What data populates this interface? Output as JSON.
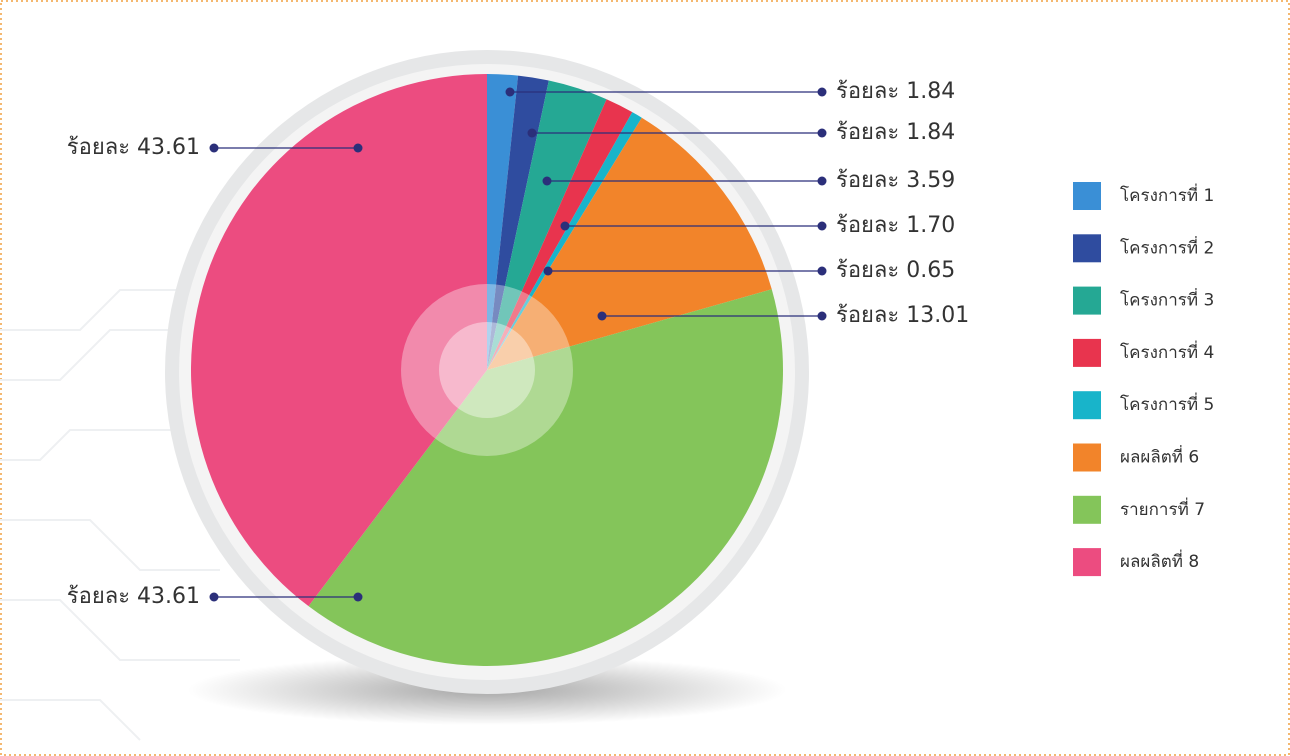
{
  "chart_data": {
    "type": "pie",
    "categories": [
      "โครงการที่ 1",
      "โครงการที่ 2",
      "โครงการที่ 3",
      "โครงการที่ 4",
      "โครงการที่ 5",
      "ผลผลิตที่ 6",
      "รายการที่ 7",
      "ผลผลิตที่ 8"
    ],
    "values": [
      1.84,
      1.84,
      3.59,
      1.7,
      0.65,
      13.01,
      43.61,
      43.61
    ],
    "value_labels": [
      "ร้อยละ 1.84",
      "ร้อยละ 1.84",
      "ร้อยละ 3.59",
      "ร้อยละ 1.70",
      "ร้อยละ 0.65",
      "ร้อยละ 13.01",
      "ร้อยละ 43.61",
      "ร้อยละ 43.61"
    ],
    "colors": [
      "#3a8fd6",
      "#2f4c9f",
      "#25a894",
      "#e8344e",
      "#18b4ca",
      "#f2842a",
      "#84c55a",
      "#ec4c80"
    ],
    "legend": "right"
  }
}
